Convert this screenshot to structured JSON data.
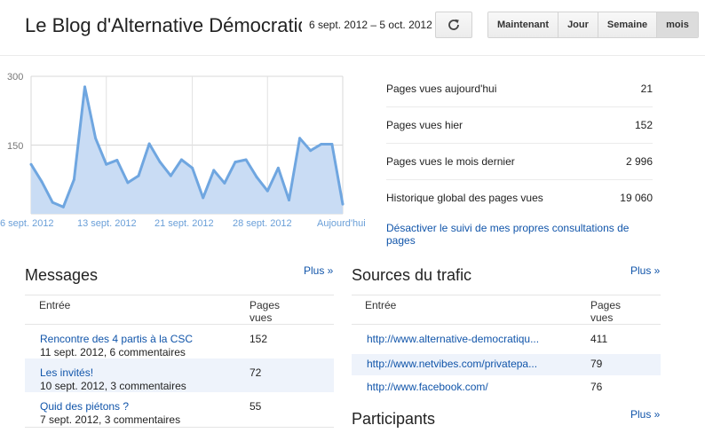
{
  "header": {
    "title": "Le Blog d'Alternative Démocratique",
    "date_range": "6 sept. 2012 – 5 oct. 2012",
    "refresh_icon": "refresh-icon",
    "range_buttons": [
      "Maintenant",
      "Jour",
      "Semaine",
      "mois"
    ],
    "active_range": "mois"
  },
  "chart_data": {
    "type": "area",
    "y_ticks": [
      "300",
      "150"
    ],
    "ylim": [
      0,
      300
    ],
    "x_ticks": [
      "6 sept. 2012",
      "13 sept. 2012",
      "21 sept. 2012",
      "28 sept. 2012",
      "Aujourd'hui"
    ],
    "values": [
      108,
      70,
      25,
      15,
      75,
      277,
      165,
      108,
      117,
      68,
      83,
      153,
      113,
      83,
      118,
      100,
      35,
      95,
      67,
      113,
      118,
      80,
      50,
      100,
      30,
      165,
      138,
      152,
      152,
      21
    ],
    "color": "#6fa6e0",
    "fill": "#c9dcf4",
    "grid": true
  },
  "stats": [
    {
      "label": "Pages vues aujourd'hui",
      "value": "21"
    },
    {
      "label": "Pages vues hier",
      "value": "152"
    },
    {
      "label": "Pages vues le mois dernier",
      "value": "2 996"
    },
    {
      "label": "Historique global des pages vues",
      "value": "19 060"
    }
  ],
  "own_views_link": "Désactiver le suivi de mes propres consultations de pages",
  "messages": {
    "title": "Messages",
    "more": "Plus »",
    "col_entry": "Entrée",
    "col_views": "Pages vues",
    "rows": [
      {
        "title": "Rencontre des 4 partis à la CSC",
        "meta": "11 sept. 2012, 6 commentaires",
        "views": "152"
      },
      {
        "title": "Les invités!",
        "meta": "10 sept. 2012, 3 commentaires",
        "views": "72"
      },
      {
        "title": "Quid des piétons ?",
        "meta": "7 sept. 2012, 3 commentaires",
        "views": "55"
      }
    ]
  },
  "sources": {
    "title": "Sources du trafic",
    "more": "Plus »",
    "col_entry": "Entrée",
    "col_views": "Pages vues",
    "rows": [
      {
        "url": "http://www.alternative-democratiqu...",
        "views": "411"
      },
      {
        "url": "http://www.netvibes.com/privatepa...",
        "views": "79"
      },
      {
        "url": "http://www.facebook.com/",
        "views": "76"
      }
    ]
  },
  "participants": {
    "title": "Participants",
    "more": "Plus »"
  }
}
